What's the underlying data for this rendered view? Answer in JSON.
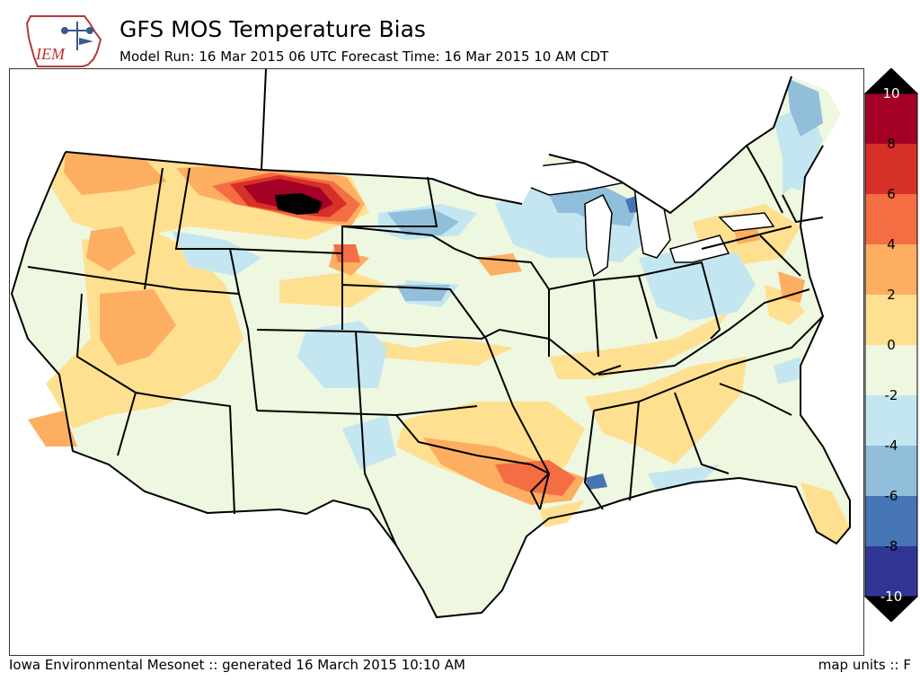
{
  "header": {
    "title": "GFS MOS Temperature Bias",
    "subtitle": "Model Run: 16 Mar 2015 06 UTC Forecast Time: 16 Mar 2015 10 AM CDT",
    "logo_text": "IEM"
  },
  "footer": {
    "credit": "Iowa Environmental Mesonet :: generated 16 March 2015 10:10 AM",
    "units": "map units :: F"
  },
  "colorbar": {
    "labels": [
      "10",
      "8",
      "6",
      "4",
      "2",
      "0",
      "-2",
      "-4",
      "-6",
      "-8",
      "-10"
    ],
    "colors": [
      "#a50026",
      "#d73027",
      "#f46d43",
      "#fdae61",
      "#fee090",
      "#eef7df",
      "#c4e6f0",
      "#91bfdb",
      "#4575b4",
      "#313695"
    ],
    "over_color": "#000000",
    "under_color": "#000000"
  },
  "map": {
    "background_color": "#eef7df",
    "land_outline_color": "#000000",
    "ocean_color": "#ffffff"
  }
}
